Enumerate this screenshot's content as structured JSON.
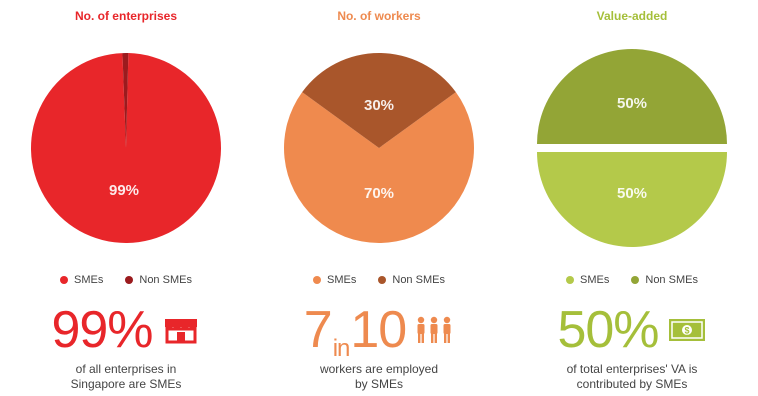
{
  "panels": [
    {
      "title": "No. of enterprises",
      "title_color": "#e8262a",
      "legend": [
        {
          "label": "SMEs",
          "color": "#e8262a"
        },
        {
          "label": "Non SMEs",
          "color": "#9b1b1e"
        }
      ],
      "stat": {
        "number": "99%",
        "small": "",
        "number2": "",
        "color": "#e8262a",
        "icon": "shop-icon"
      },
      "desc": [
        "of all enterprises in",
        "Singapore are SMEs"
      ]
    },
    {
      "title": "No. of workers",
      "title_color": "#ee8a4f",
      "legend": [
        {
          "label": "SMEs",
          "color": "#ef8a4e"
        },
        {
          "label": "Non SMEs",
          "color": "#a9562b"
        }
      ],
      "stat": {
        "number": "7",
        "small": "in",
        "number2": "10",
        "color": "#ee8a4f",
        "icon": "people-icon"
      },
      "desc": [
        "workers are employed",
        "by SMEs"
      ]
    },
    {
      "title": "Value-added",
      "title_color": "#a5bf3a",
      "legend": [
        {
          "label": "SMEs",
          "color": "#b4c94a"
        },
        {
          "label": "Non SMEs",
          "color": "#93a536"
        }
      ],
      "stat": {
        "number": "50%",
        "small": "",
        "number2": "",
        "color": "#a5bf3a",
        "icon": "banknote-icon"
      },
      "desc": [
        "of total enterprises' VA is",
        "contributed by SMEs"
      ]
    }
  ],
  "chart_data": [
    {
      "type": "pie",
      "title": "No. of enterprises",
      "slices": [
        {
          "label": "SMEs",
          "value": 99,
          "text": "99%",
          "color": "#e8262a"
        },
        {
          "label": "Non SMEs",
          "value": 1,
          "text": "",
          "color": "#9b1b1e"
        }
      ]
    },
    {
      "type": "pie",
      "title": "No. of workers",
      "slices": [
        {
          "label": "SMEs",
          "value": 70,
          "text": "70%",
          "color": "#ef8a4e"
        },
        {
          "label": "Non SMEs",
          "value": 30,
          "text": "30%",
          "color": "#a9562b"
        }
      ]
    },
    {
      "type": "pie",
      "title": "Value-added",
      "exploded": true,
      "slices": [
        {
          "label": "SMEs",
          "value": 50,
          "text": "50%",
          "color": "#b4c94a"
        },
        {
          "label": "Non SMEs",
          "value": 50,
          "text": "50%",
          "color": "#93a536"
        }
      ]
    }
  ]
}
